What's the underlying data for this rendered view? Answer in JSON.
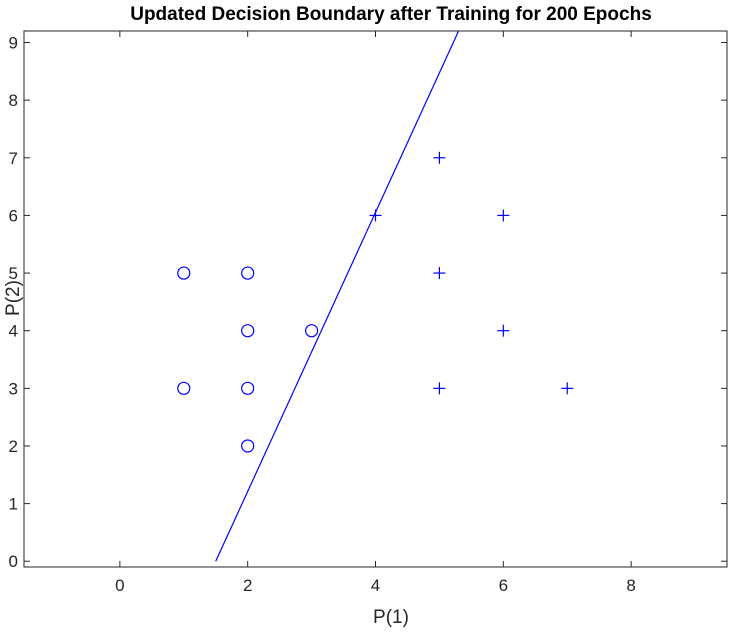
{
  "chart_data": {
    "type": "scatter",
    "title": "Updated Decision Boundary after Training for 200 Epochs",
    "xlabel": "P(1)",
    "ylabel": "P(2)",
    "xlim": [
      -1.5,
      9.5
    ],
    "ylim": [
      -0.1,
      9.2
    ],
    "xticks": [
      0,
      2,
      4,
      6,
      8
    ],
    "yticks": [
      0,
      1,
      2,
      3,
      4,
      5,
      6,
      7,
      8,
      9
    ],
    "grid": false,
    "color": "#0000ff",
    "series": [
      {
        "marker": "circle",
        "points": [
          [
            1,
            5
          ],
          [
            1,
            3
          ],
          [
            2,
            5
          ],
          [
            2,
            4
          ],
          [
            2,
            3
          ],
          [
            2,
            2
          ],
          [
            3,
            4
          ]
        ]
      },
      {
        "marker": "plus",
        "points": [
          [
            4,
            6
          ],
          [
            5,
            7
          ],
          [
            5,
            5
          ],
          [
            5,
            3
          ],
          [
            6,
            6
          ],
          [
            6,
            4
          ],
          [
            7,
            3
          ]
        ]
      }
    ],
    "boundary": {
      "type": "line",
      "points": [
        [
          1.5,
          0
        ],
        [
          5.3,
          9.2
        ]
      ]
    }
  }
}
